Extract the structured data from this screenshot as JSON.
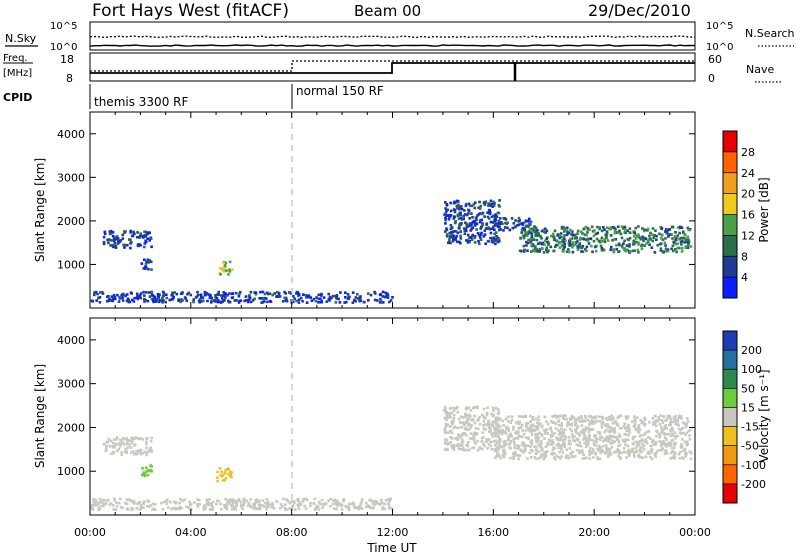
{
  "header": {
    "station": "Fort Hays West (fitACF)",
    "beam": "Beam 00",
    "date": "29/Dec/2010"
  },
  "top_panels": {
    "nsky_label": "N.Sky",
    "nsearch_label": "N.Search",
    "exp_ticks": [
      "10^5",
      "10^0"
    ],
    "freq_label_1": "Freq.",
    "freq_label_2": "[MHz]",
    "freq_ticks": [
      "18",
      "8"
    ],
    "nave_label": "Nave",
    "nave_ticks": [
      "60",
      "0"
    ],
    "cpid_label": "CPID",
    "cpid_segments": [
      {
        "start_hr": 0,
        "label": "themis 3300 RF"
      },
      {
        "start_hr": 8,
        "label": "normal 150 RF"
      }
    ]
  },
  "colorbars": {
    "power": {
      "label": "Power [dB]",
      "ticks": [
        "28",
        "24",
        "20",
        "16",
        "12",
        "8",
        "4"
      ],
      "colors": [
        "#0a1eff",
        "#1e3c96",
        "#2b6e4a",
        "#4aa049",
        "#f0c81e",
        "#f0a01e",
        "#ff6400",
        "#e60000"
      ]
    },
    "velocity": {
      "label": "Velocity [m s⁻¹]",
      "ticks": [
        "200",
        "100",
        "50",
        "15",
        "-15",
        "-50",
        "-100",
        "-200"
      ],
      "colors": [
        "#1e3cb4",
        "#2870a0",
        "#2e8a4c",
        "#6ccc3c",
        "#c8c8c0",
        "#f0c01e",
        "#f09a14",
        "#ff6400",
        "#e60000"
      ]
    }
  },
  "axes": {
    "ylabel": "Slant Range [km]",
    "yticks": [
      "4000",
      "3000",
      "2000",
      "1000"
    ],
    "xticks": [
      "00:00",
      "04:00",
      "08:00",
      "12:00",
      "16:00",
      "20:00",
      "00:00"
    ],
    "xlabel": "Time UT"
  },
  "chart_data": [
    {
      "type": "heatmap",
      "name_on_chart": "Power [dB]",
      "x_range_hours": [
        0,
        24
      ],
      "y_range_km": [
        0,
        4500
      ],
      "z_ticks_db": [
        4,
        8,
        12,
        16,
        20,
        24,
        28
      ],
      "echo_regions": [
        {
          "t": [
            0.5,
            2.4
          ],
          "range_km": [
            1400,
            1800
          ],
          "power_db": 6
        },
        {
          "t": [
            2.0,
            2.4
          ],
          "range_km": [
            900,
            1200
          ],
          "power_db": 6
        },
        {
          "t": [
            5.0,
            5.6
          ],
          "range_km": [
            800,
            1100
          ],
          "power_db": 14
        },
        {
          "t": [
            14.0,
            16.2
          ],
          "range_km": [
            1500,
            2500
          ],
          "power_db": 6
        },
        {
          "t": [
            16.0,
            17.6
          ],
          "range_km": [
            1800,
            2100
          ],
          "power_db": 6
        },
        {
          "t": [
            17.0,
            23.8
          ],
          "range_km": [
            1300,
            1900
          ],
          "power_db": 10
        },
        {
          "t": [
            0,
            12
          ],
          "range_km": [
            150,
            400
          ],
          "power_db": 5
        }
      ]
    },
    {
      "type": "heatmap",
      "name_on_chart": "Velocity [m s⁻¹]",
      "x_range_hours": [
        0,
        24
      ],
      "y_range_km": [
        0,
        4500
      ],
      "z_ticks": [
        -200,
        -100,
        -50,
        -15,
        15,
        50,
        100,
        200
      ],
      "echo_regions": [
        {
          "t": [
            0.5,
            2.4
          ],
          "range_km": [
            1400,
            1800
          ],
          "velocity_ms": 0
        },
        {
          "t": [
            2.0,
            2.4
          ],
          "range_km": [
            900,
            1200
          ],
          "velocity_ms": 30
        },
        {
          "t": [
            5.0,
            5.6
          ],
          "range_km": [
            800,
            1100
          ],
          "velocity_ms": -40
        },
        {
          "t": [
            14.0,
            16.2
          ],
          "range_km": [
            1500,
            2500
          ],
          "velocity_ms": 0
        },
        {
          "t": [
            16.0,
            23.8
          ],
          "range_km": [
            1300,
            2300
          ],
          "velocity_ms": 0
        },
        {
          "t": [
            0,
            12
          ],
          "range_km": [
            150,
            400
          ],
          "velocity_ms": 0
        }
      ]
    }
  ]
}
